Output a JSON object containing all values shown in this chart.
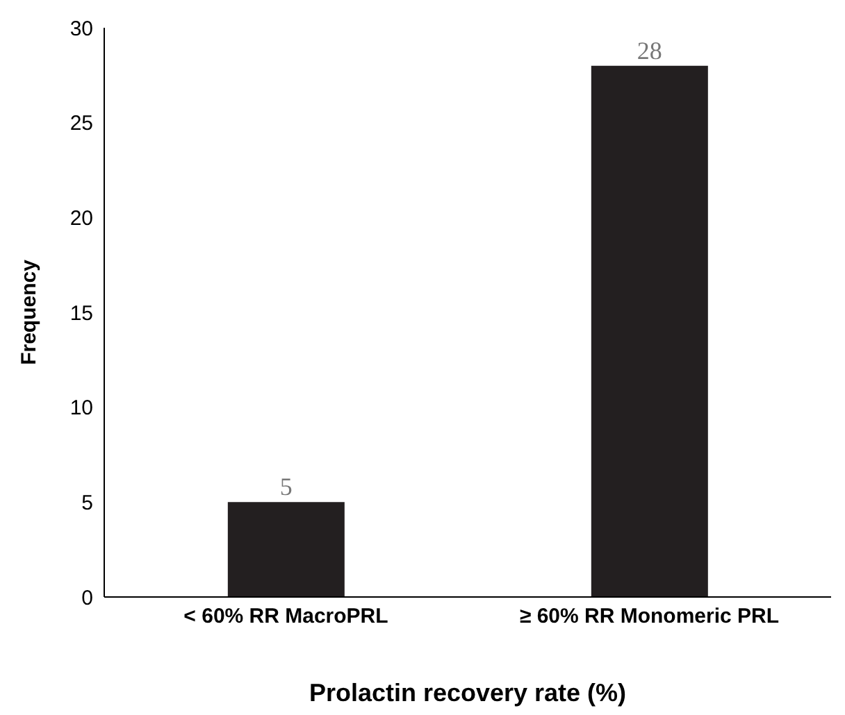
{
  "chart_data": {
    "type": "bar",
    "xlabel": "Prolactin recovery rate (%)",
    "ylabel": "Frequency",
    "categories": [
      "< 60% RR MacroPRL",
      "≥ 60% RR Monomeric PRL"
    ],
    "values": [
      5,
      28
    ],
    "color": "#231f20",
    "ylim": [
      0,
      30
    ],
    "yticks": [
      0,
      5,
      10,
      15,
      20,
      25,
      30
    ],
    "grid": false,
    "data_labels": true
  }
}
